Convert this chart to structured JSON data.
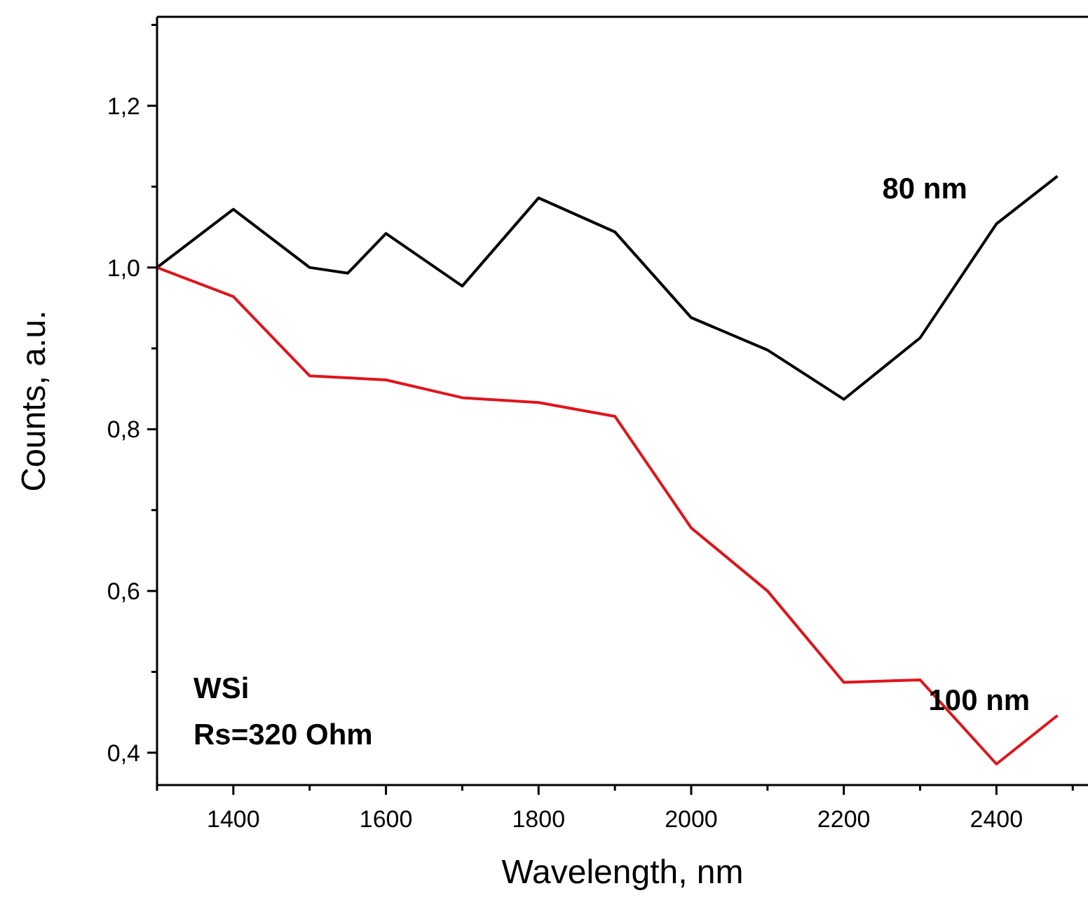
{
  "chart_data": {
    "type": "line",
    "xlabel": "Wavelength, nm",
    "ylabel": "Counts, a.u.",
    "xlim": [
      1300,
      2520
    ],
    "ylim": [
      0.36,
      1.31
    ],
    "xticks": [
      {
        "value": 1300,
        "label": null
      },
      1400,
      {
        "value": 1500,
        "label": null
      },
      1600,
      {
        "value": 1700,
        "label": null
      },
      1800,
      {
        "value": 1900,
        "label": null
      },
      2000,
      {
        "value": 2100,
        "label": null
      },
      2200,
      {
        "value": 2300,
        "label": null
      },
      2400,
      {
        "value": 2500,
        "label": null
      }
    ],
    "yticks": [
      {
        "value": 0.4,
        "label": "0,4"
      },
      {
        "value": 0.5,
        "label": null
      },
      {
        "value": 0.6,
        "label": "0,6"
      },
      {
        "value": 0.7,
        "label": null
      },
      {
        "value": 0.8,
        "label": "0,8"
      },
      {
        "value": 0.9,
        "label": null
      },
      {
        "value": 1.0,
        "label": "1,0"
      },
      {
        "value": 1.1,
        "label": null
      },
      {
        "value": 1.2,
        "label": "1,2"
      },
      {
        "value": 1.3,
        "label": null
      }
    ],
    "grid": false,
    "marker": "none",
    "line_style": "solid",
    "series": [
      {
        "name": "80 nm",
        "color": "#000000",
        "x": [
          1300,
          1400,
          1500,
          1550,
          1600,
          1700,
          1800,
          1900,
          2000,
          2100,
          2200,
          2300,
          2400,
          2480
        ],
        "values": [
          1.0,
          1.072,
          1.0,
          0.993,
          1.042,
          0.977,
          1.086,
          1.044,
          0.938,
          0.898,
          0.837,
          0.913,
          1.054,
          1.113
        ]
      },
      {
        "name": "100 nm",
        "color": "#e0141b",
        "x": [
          1300,
          1400,
          1500,
          1600,
          1700,
          1800,
          1900,
          2000,
          2100,
          2200,
          2300,
          2400,
          2480
        ],
        "values": [
          1.0,
          0.964,
          0.866,
          0.861,
          0.839,
          0.833,
          0.816,
          0.678,
          0.6,
          0.487,
          0.49,
          0.386,
          0.446
        ]
      }
    ],
    "annotations": [
      "WSi",
      "Rs=320 Ohm"
    ]
  }
}
